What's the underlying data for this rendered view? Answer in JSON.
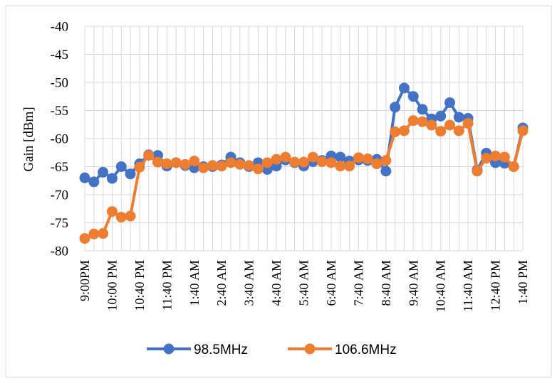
{
  "chart_data": {
    "type": "line",
    "title": "",
    "xlabel": "",
    "ylabel": "Gain [dBm]",
    "ylim": [
      -80,
      -40
    ],
    "ystep": 5,
    "grid": true,
    "legend_position": "bottom",
    "time_labels": [
      "9:00PM",
      "10:00 PM",
      "10:40 PM",
      "11:40 PM",
      "1:40 AM",
      "2:40 AM",
      "3:40 AM",
      "4:40 AM",
      "5:40 AM",
      "6:40 AM",
      "7:40 AM",
      "8:40 AM",
      "9:40 AM",
      "10:40 AM",
      "11:40 AM",
      "12:40 PM",
      "1:40 PM"
    ],
    "time_label_positions": [
      0,
      3,
      6,
      9,
      12,
      15,
      18,
      21,
      24,
      27,
      30,
      33,
      36,
      39,
      42,
      45,
      48
    ],
    "series": [
      {
        "name": "98.5MHz",
        "color": "#4472C4",
        "values": [
          -67,
          -67.7,
          -66,
          -67.1,
          -65,
          -66.3,
          -64.5,
          -62.9,
          -63,
          -64.9,
          -64.3,
          -64.8,
          -65.2,
          -65,
          -65,
          -64.7,
          -63.3,
          -64.3,
          -65,
          -64.3,
          -65.5,
          -64.9,
          -63.8,
          -64.3,
          -64.9,
          -64.1,
          -63.9,
          -63.1,
          -63.3,
          -64,
          -63.8,
          -63.9,
          -63.7,
          -65.8,
          -54.4,
          -51,
          -52.5,
          -54.8,
          -56.5,
          -56,
          -53.6,
          -56.2,
          -56.4,
          -65.6,
          -62.6,
          -64.3,
          -64.4,
          -65,
          -58.1
        ]
      },
      {
        "name": "106.6MHz",
        "color": "#ED7D31",
        "values": [
          -77.8,
          -77,
          -76.9,
          -73,
          -74,
          -73.8,
          -65.1,
          -63,
          -64.2,
          -64.5,
          -64.3,
          -64.6,
          -64,
          -65.2,
          -64.8,
          -64.9,
          -64.3,
          -64.6,
          -64.8,
          -65.4,
          -64.3,
          -63.7,
          -63.3,
          -64.2,
          -64.2,
          -63.3,
          -64.1,
          -64.3,
          -64.9,
          -64.9,
          -63.4,
          -63.6,
          -64.5,
          -63.9,
          -58.8,
          -58.6,
          -56.8,
          -57,
          -57.6,
          -58.7,
          -57.6,
          -58.6,
          -57.3,
          -65.8,
          -63.5,
          -63.1,
          -63.3,
          -65,
          -58.6
        ]
      }
    ]
  }
}
